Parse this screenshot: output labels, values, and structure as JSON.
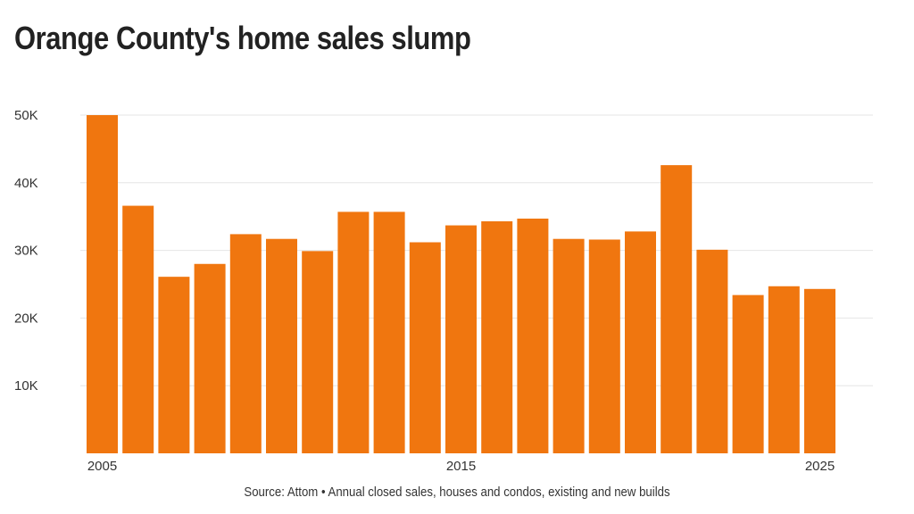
{
  "chart_data": {
    "type": "bar",
    "title": "Orange County's home sales slump",
    "source": "Source: Attom • Annual closed sales, houses and condos, existing and new builds",
    "categories": [
      2005,
      2006,
      2007,
      2008,
      2009,
      2010,
      2011,
      2012,
      2013,
      2014,
      2015,
      2016,
      2017,
      2018,
      2019,
      2020,
      2021,
      2022,
      2023,
      2024,
      2025
    ],
    "values": [
      50000,
      36600,
      26100,
      28000,
      32400,
      31700,
      29900,
      35700,
      35700,
      31200,
      33700,
      34300,
      34700,
      31700,
      31600,
      32800,
      42600,
      30100,
      23400,
      24700,
      24300
    ],
    "ylim": [
      0,
      50000
    ],
    "yticks": [
      10000,
      20000,
      30000,
      40000,
      50000
    ],
    "ytick_labels": [
      "10K",
      "20K",
      "30K",
      "40K",
      "50K"
    ],
    "xtick_labels": [
      "2005",
      "2015",
      "2025"
    ],
    "xlabel": "",
    "ylabel": "",
    "grid": true,
    "bar_color": "#f0760f",
    "grid_color": "#e6e6e6"
  }
}
